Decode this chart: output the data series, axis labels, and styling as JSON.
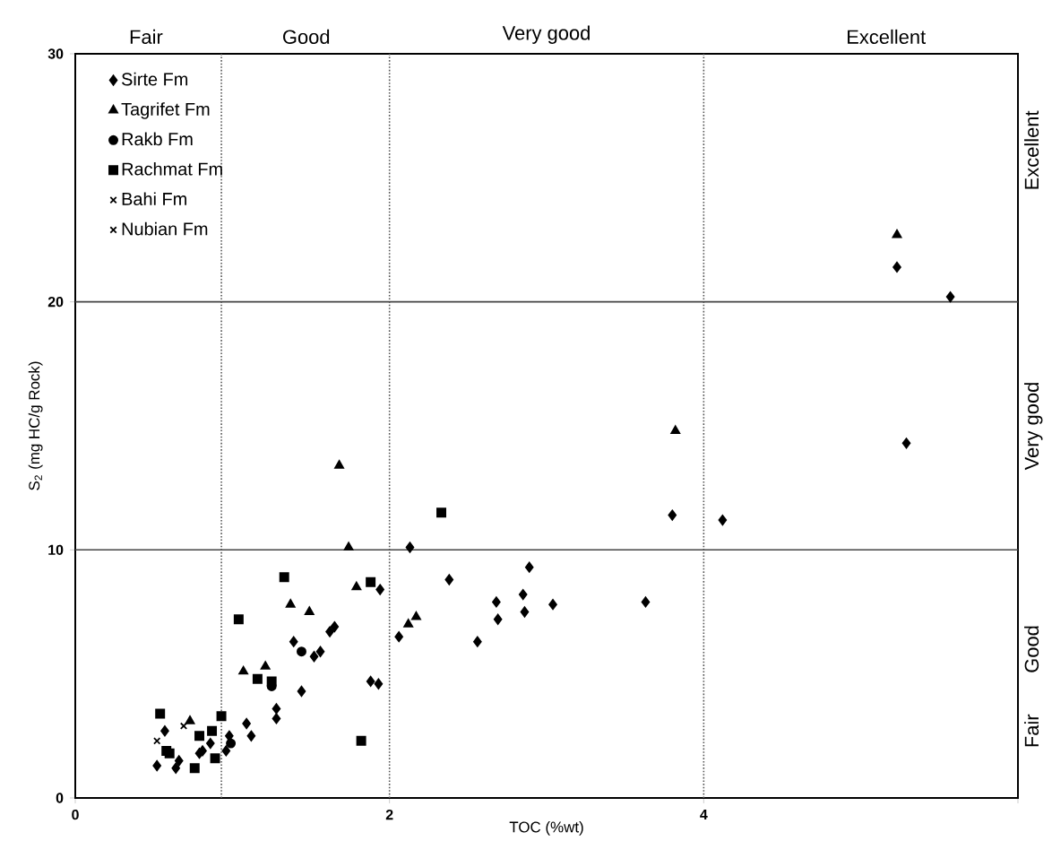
{
  "chart_data": {
    "type": "scatter",
    "xlabel": "TOC (%wt)",
    "ylabel": "S$_{2}$ (mg HC/g Rock)",
    "xlim": [
      0,
      6
    ],
    "ylim": [
      0,
      30
    ],
    "xticks": [
      0,
      2,
      4,
      {
        "value": 6,
        "label": null
      }
    ],
    "yticks": [
      0,
      10,
      20,
      30
    ],
    "legend": "top left",
    "series": [
      {
        "name": "Sirte Fm",
        "color": "#000000",
        "marker": "diamond",
        "x": [
          0.57,
          0.52,
          0.64,
          0.66,
          0.79,
          0.81,
          0.86,
          0.96,
          0.98,
          1.09,
          1.12,
          1.28,
          1.28,
          1.44,
          1.39,
          1.52,
          1.56,
          1.62,
          1.65,
          1.88,
          1.93,
          1.94,
          2.13,
          2.38,
          2.06,
          2.56,
          2.68,
          2.85,
          2.69,
          2.86,
          3.04,
          2.89,
          3.63,
          3.8,
          4.12,
          5.23,
          5.57,
          5.29
        ],
        "values": [
          2.7,
          1.3,
          1.2,
          1.5,
          1.8,
          1.9,
          2.2,
          1.9,
          2.5,
          3.0,
          2.5,
          3.6,
          3.2,
          4.3,
          6.3,
          5.7,
          5.9,
          6.7,
          6.9,
          4.7,
          4.6,
          8.4,
          10.1,
          8.8,
          6.5,
          6.3,
          7.9,
          8.2,
          7.2,
          7.5,
          7.8,
          9.3,
          7.9,
          11.4,
          11.2,
          21.4,
          20.2,
          14.3
        ]
      },
      {
        "name": "Tagrifet Fm",
        "color": "#000000",
        "marker": "triangle",
        "x": [
          0.73,
          1.07,
          1.21,
          1.37,
          1.49,
          1.68,
          1.74,
          1.79,
          2.12,
          2.17,
          3.82,
          5.23
        ],
        "values": [
          3.1,
          5.1,
          5.3,
          7.8,
          7.5,
          13.4,
          10.1,
          8.5,
          7.0,
          7.3,
          14.8,
          22.7
        ]
      },
      {
        "name": "Rakb Fm",
        "color": "#000000",
        "marker": "circle",
        "x": [
          0.99,
          1.44,
          1.25
        ],
        "values": [
          2.2,
          5.9,
          4.5
        ]
      },
      {
        "name": "Rachmat Fm",
        "color": "#000000",
        "marker": "square",
        "x": [
          0.54,
          0.93,
          0.79,
          0.87,
          0.58,
          0.6,
          0.76,
          0.89,
          1.04,
          1.16,
          1.25,
          1.33,
          1.88,
          2.33,
          1.82
        ],
        "values": [
          3.4,
          3.3,
          2.5,
          2.7,
          1.9,
          1.8,
          1.2,
          1.6,
          7.2,
          4.8,
          4.7,
          8.9,
          8.7,
          11.5,
          2.3
        ]
      },
      {
        "name": "Bahi Fm",
        "color": "#000000",
        "marker": "cross",
        "x": [
          0.52
        ],
        "values": [
          2.3
        ]
      },
      {
        "name": "Nubian Fm",
        "color": "#000000",
        "marker": "cross",
        "x": [
          0.69
        ],
        "values": [
          2.9
        ]
      }
    ],
    "ref_lines": [
      {
        "axis": "x",
        "value": 0.93,
        "color": "#555555",
        "line_style": "dotted"
      },
      {
        "axis": "x",
        "value": 2,
        "color": "#555555",
        "line_style": "dotted"
      },
      {
        "axis": "x",
        "value": 4,
        "color": "#555555",
        "line_style": "dotted"
      },
      {
        "axis": "y",
        "value": 10,
        "color": "#444444",
        "line_style": "solid"
      },
      {
        "axis": "y",
        "value": 20,
        "color": "#444444",
        "line_style": "solid"
      }
    ],
    "annotations": [
      "Fair",
      "Good",
      "Very good",
      "Excellent",
      "Fair",
      "Good",
      "Very good",
      "Excellent"
    ]
  }
}
